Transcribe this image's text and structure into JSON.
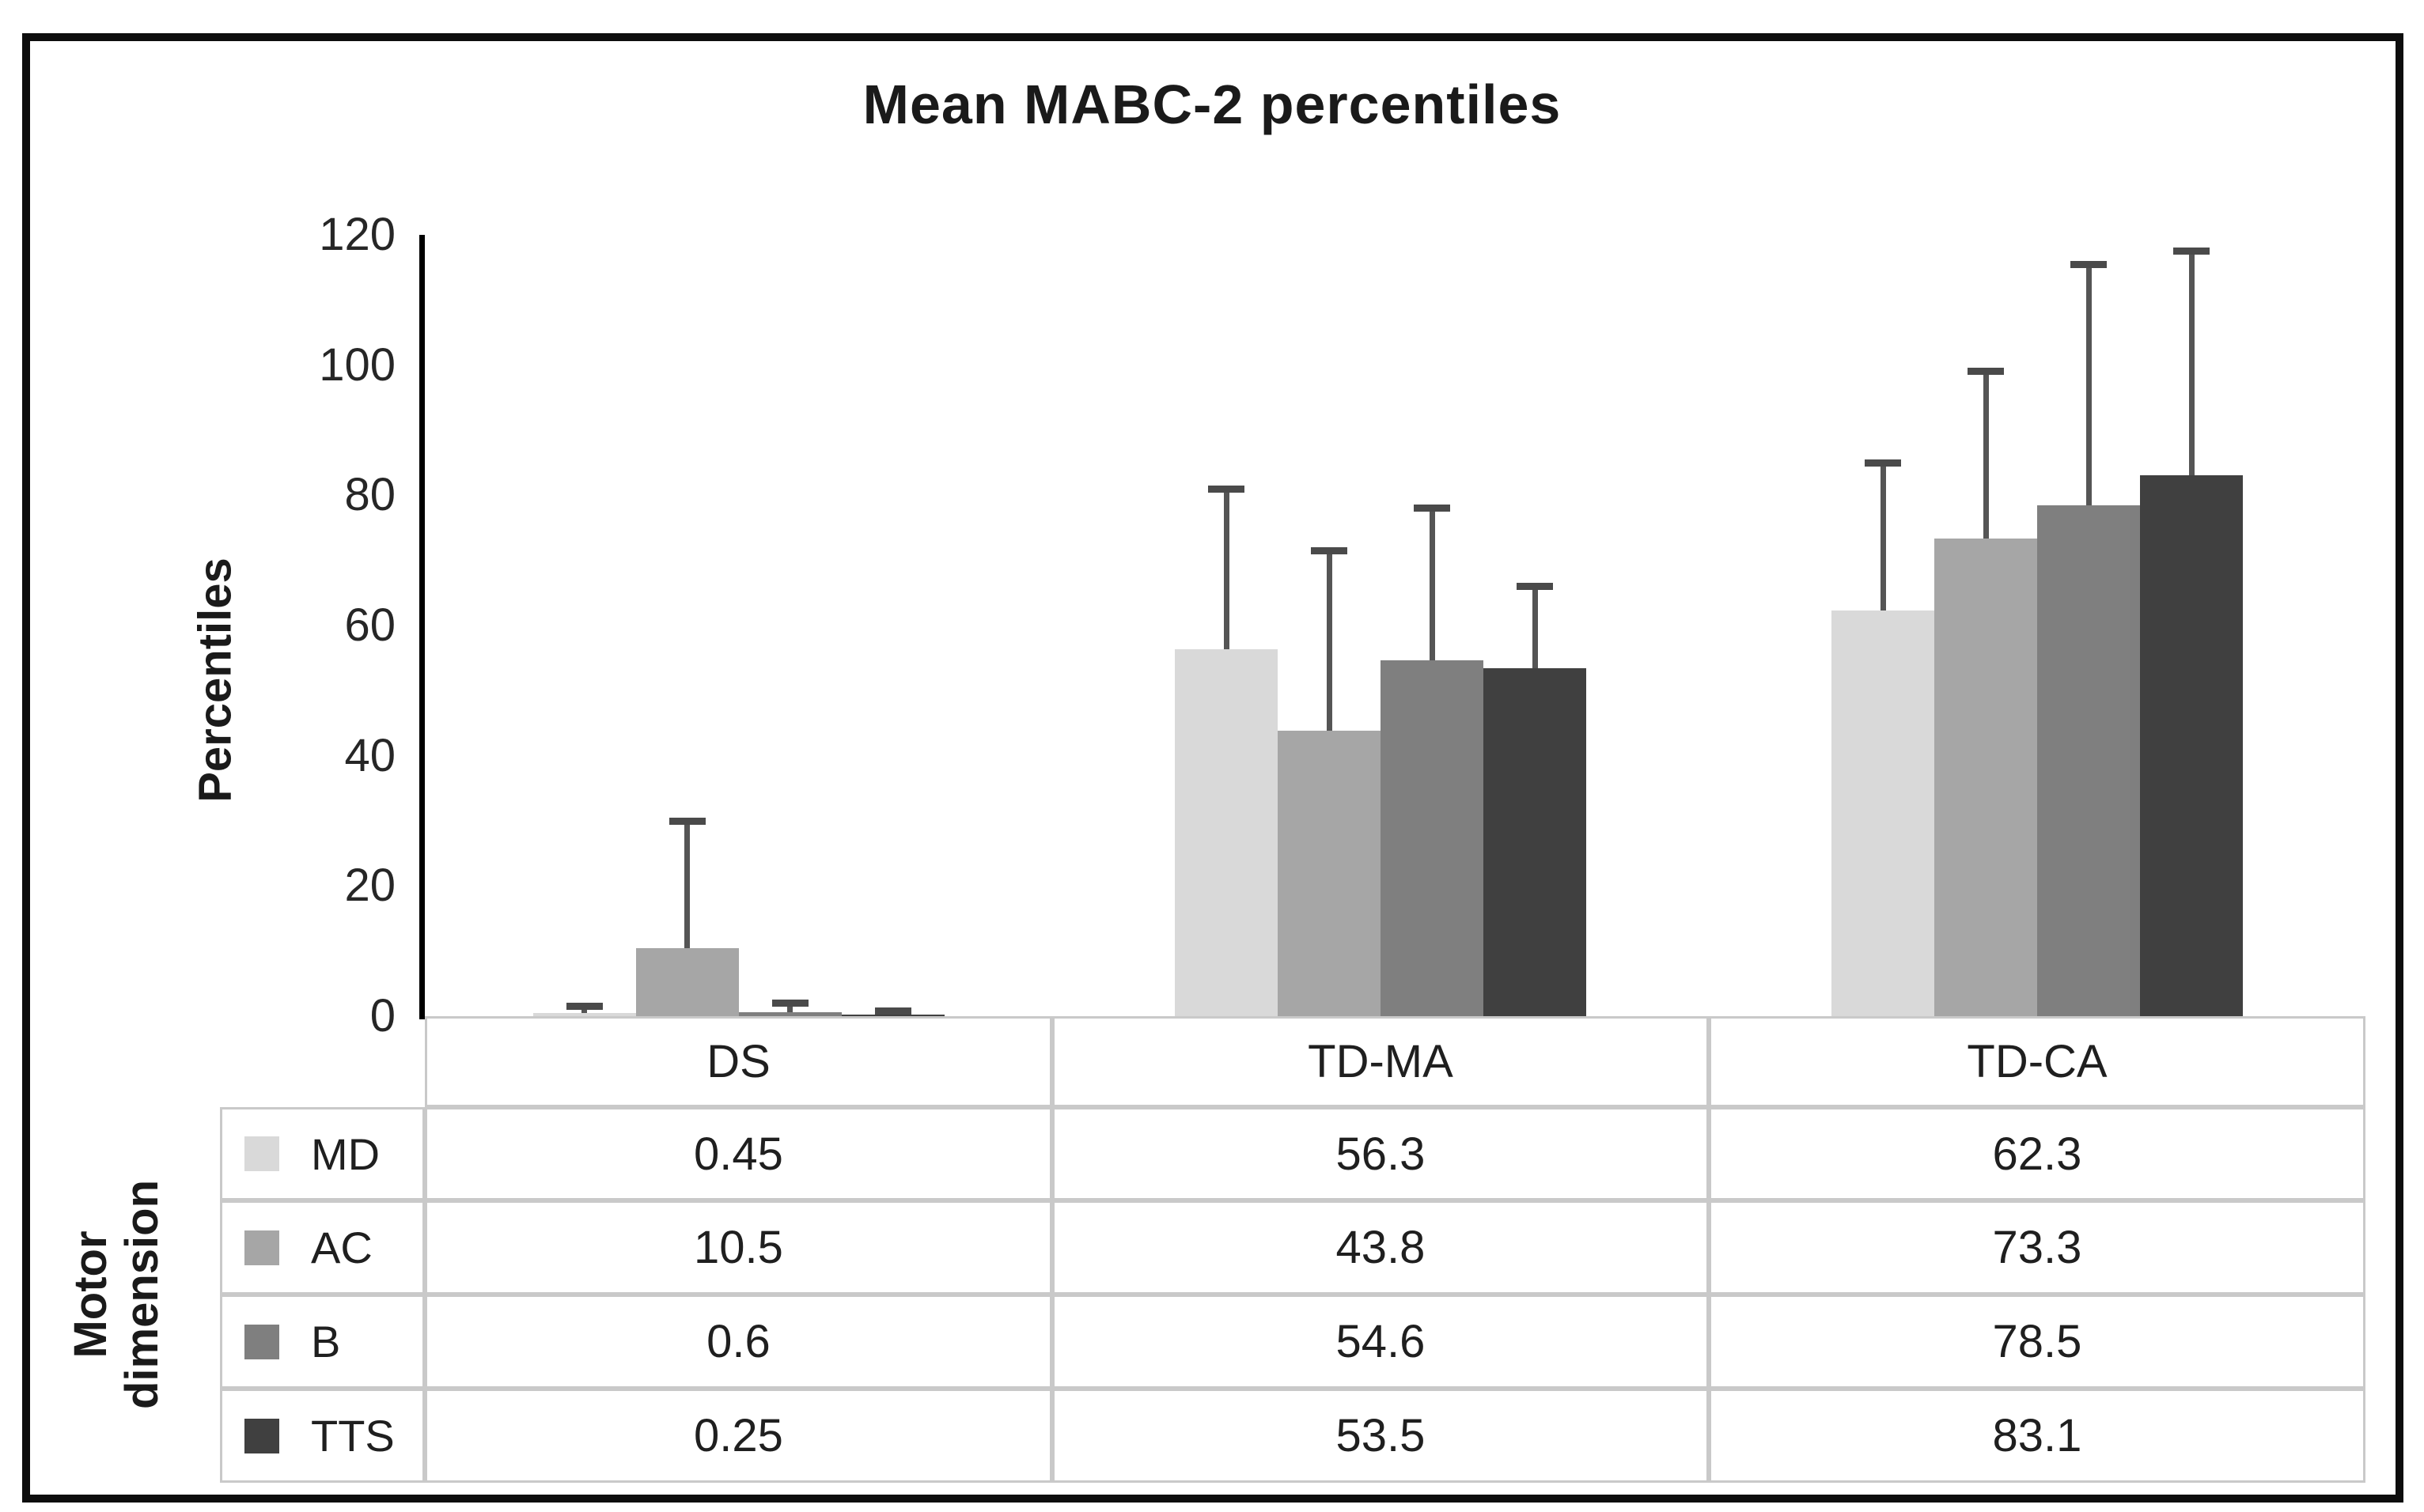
{
  "title": "Mean MABC-2 percentiles",
  "y_axis": {
    "label": "Percentiles",
    "tick_labels": [
      "0",
      "20",
      "40",
      "60",
      "80",
      "100",
      "120"
    ],
    "min": 0,
    "max": 120
  },
  "x_axis": {
    "label": "Motor dimension",
    "categories": [
      "DS",
      "TD-MA",
      "TD-CA"
    ]
  },
  "chart_data": {
    "type": "bar",
    "title": "Mean MABC-2 percentiles",
    "xlabel": "Motor dimension",
    "ylabel": "Percentiles",
    "ylim": [
      0,
      120
    ],
    "grid": false,
    "legend_position": "table-left",
    "error_bar_color": "#555555",
    "categories": [
      "DS",
      "TD-MA",
      "TD-CA"
    ],
    "series": [
      {
        "name": "MD",
        "color": "#d9d9d9",
        "values": [
          0.45,
          56.3,
          62.3
        ],
        "error_tops": [
          1.5,
          81,
          85
        ]
      },
      {
        "name": "AC",
        "color": "#a6a6a6",
        "values": [
          10.5,
          43.8,
          73.3
        ],
        "error_tops": [
          30,
          71.5,
          99
        ]
      },
      {
        "name": "B",
        "color": "#7f7f7f",
        "values": [
          0.6,
          54.6,
          78.5
        ],
        "error_tops": [
          2,
          78,
          115.5
        ]
      },
      {
        "name": "TTS",
        "color": "#404040",
        "values": [
          0.25,
          53.5,
          83.1
        ],
        "error_tops": [
          0.8,
          66,
          117.5
        ]
      }
    ]
  },
  "table": {
    "row_label_header": "Motor dimension",
    "column_headers": [
      "DS",
      "TD-MA",
      "TD-CA"
    ],
    "rows": [
      {
        "label": "MD",
        "swatch_color": "#d9d9d9",
        "cells": [
          "0.45",
          "56.3",
          "62.3"
        ]
      },
      {
        "label": "AC",
        "swatch_color": "#a6a6a6",
        "cells": [
          "10.5",
          "43.8",
          "73.3"
        ]
      },
      {
        "label": "B",
        "swatch_color": "#7f7f7f",
        "cells": [
          "0.6",
          "54.6",
          "78.5"
        ]
      },
      {
        "label": "TTS",
        "swatch_color": "#404040",
        "cells": [
          "0.25",
          "53.5",
          "83.1"
        ]
      }
    ]
  }
}
